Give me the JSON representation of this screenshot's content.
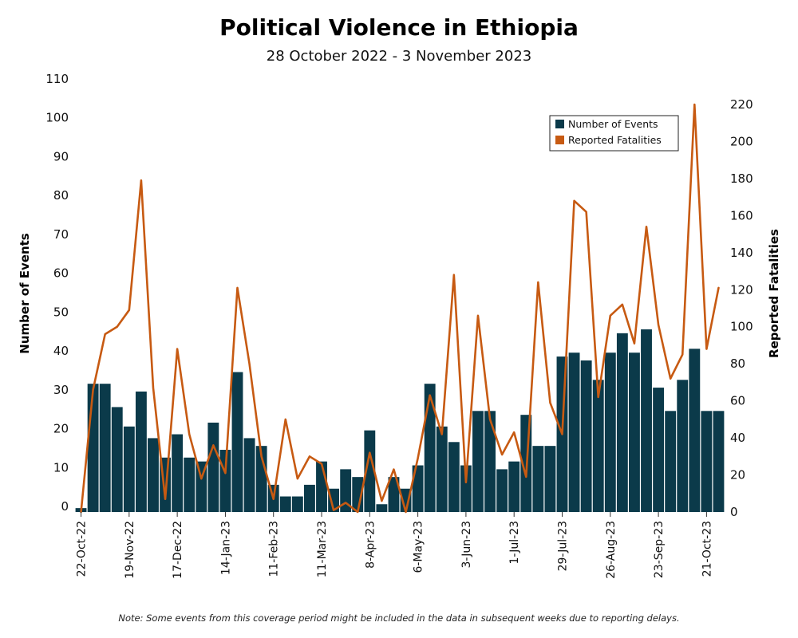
{
  "chart_data": {
    "type": "bar",
    "title": "Political Violence in Ethiopia",
    "subtitle": "28 October 2022 - 3 November 2023",
    "ylabel_left": "Number of Events",
    "ylabel_right": "Reported Fatalities",
    "ylim_left": [
      0,
      110
    ],
    "ylim_right": [
      0,
      230
    ],
    "left_ticks": [
      0,
      10,
      20,
      30,
      40,
      50,
      60,
      70,
      80,
      90,
      100,
      110
    ],
    "right_ticks": [
      0,
      20,
      40,
      60,
      80,
      100,
      120,
      140,
      160,
      180,
      200,
      220
    ],
    "x_tick_labels": [
      "22-Oct-22",
      "19-Nov-22",
      "17-Dec-22",
      "14-Jan-23",
      "11-Feb-23",
      "11-Mar-23",
      "8-Apr-23",
      "6-May-23",
      "3-Jun-23",
      "1-Jul-23",
      "29-Jul-23",
      "26-Aug-23",
      "23-Sep-23",
      "21-Oct-23"
    ],
    "grid": false,
    "legend_position": "top-right",
    "note": "Note: Some events from this coverage period might be included in the data in subsequent weeks due to reporting delays.",
    "series": [
      {
        "name": "Number of Events",
        "type": "bar",
        "axis": "left",
        "color": "#0b3a4a",
        "values": [
          1,
          33,
          33,
          27,
          22,
          31,
          19,
          14,
          20,
          14,
          13,
          23,
          16,
          36,
          19,
          17,
          7,
          4,
          4,
          7,
          13,
          6,
          11,
          9,
          21,
          2,
          9,
          6,
          12,
          33,
          22,
          18,
          12,
          26,
          26,
          11,
          13,
          25,
          17,
          17,
          40,
          41,
          39,
          34,
          41,
          46,
          41,
          47,
          32,
          26,
          34,
          42,
          26,
          26
        ]
      },
      {
        "name": "Reported Fatalities",
        "type": "line",
        "axis": "right",
        "color": "#c75a12",
        "values": [
          0,
          66,
          96,
          100,
          109,
          179,
          67,
          7,
          88,
          42,
          18,
          36,
          21,
          121,
          80,
          30,
          7,
          50,
          18,
          30,
          26,
          1,
          5,
          0,
          32,
          6,
          23,
          0,
          29,
          63,
          42,
          128,
          16,
          106,
          50,
          31,
          43,
          19,
          124,
          59,
          42,
          168,
          162,
          62,
          106,
          112,
          91,
          154,
          101,
          72,
          85,
          220,
          88,
          121
        ]
      }
    ]
  }
}
